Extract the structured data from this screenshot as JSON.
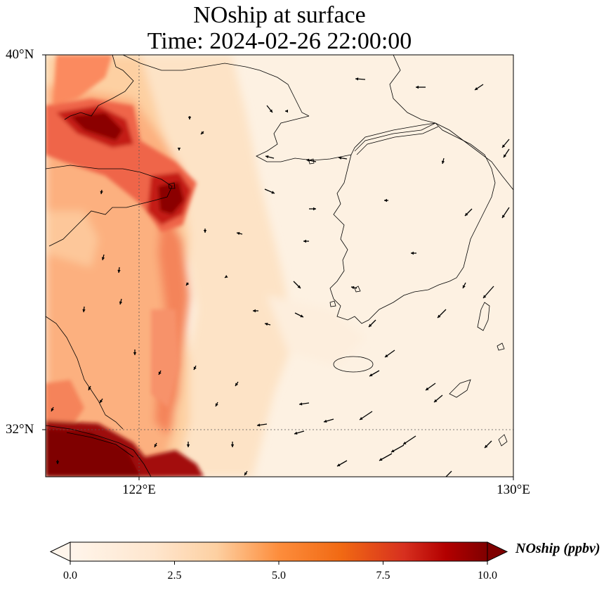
{
  "title": {
    "line1": "NOship at surface",
    "line2": "Time: 2024-02-26 22:00:00"
  },
  "map": {
    "lat_labels": [
      "40°N",
      "32°N"
    ],
    "lon_labels": [
      "122°E",
      "130°E"
    ],
    "extent": {
      "lon_min": 120,
      "lon_max": 130,
      "lat_min": 31,
      "lat_max": 40
    },
    "gridlines": "dotted at 122°E and 32°N"
  },
  "colorbar": {
    "label": "NOship (ppbv)",
    "ticks": [
      "0.0",
      "2.5",
      "5.0",
      "7.5",
      "10.0"
    ],
    "range": [
      0,
      10
    ],
    "extend": "both",
    "colors": [
      "#fff5eb",
      "#fdd2a5",
      "#fd8d3c",
      "#d94801",
      "#a50f15",
      "#7f0000"
    ]
  },
  "chart_data": {
    "type": "heatmap",
    "title": "NOship at surface",
    "subtitle": "Time: 2024-02-26 22:00:00",
    "variable": "NOship",
    "units": "ppbv",
    "colorbar_range": [
      0,
      10
    ],
    "features": "Ship NO plumes: high (>10 ppbv) near Shanghai / Yangtze mouth and along Bohai strait & Liaodong coast; moderate band southward along Chinese coast; low over Yellow Sea and Korea",
    "wind": "vectors mostly westward/south-westward; stronger north-easterly flow near Korea Strait"
  }
}
